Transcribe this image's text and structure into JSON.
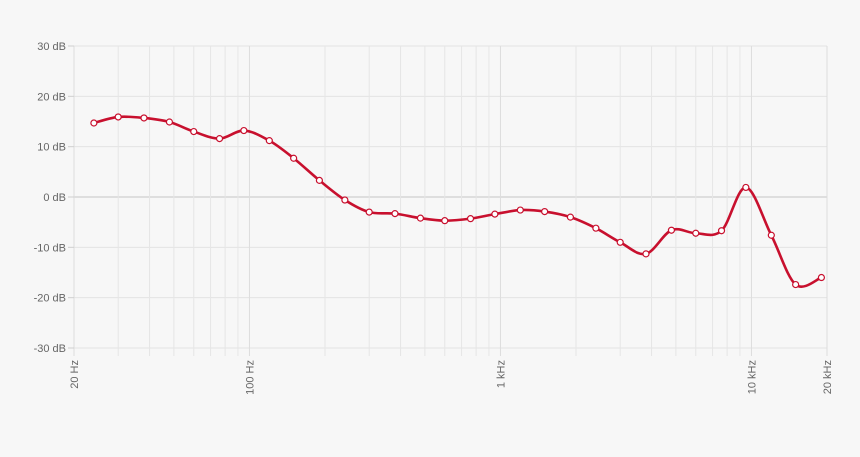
{
  "chart_data": {
    "type": "line",
    "title": "",
    "xlabel": "",
    "ylabel": "",
    "x_scale": "log",
    "xlim": [
      20,
      20000
    ],
    "ylim": [
      -30,
      30
    ],
    "grid": true,
    "legend": "none",
    "y_ticks": [
      {
        "value": 30,
        "label": "30 dB"
      },
      {
        "value": 20,
        "label": "20 dB"
      },
      {
        "value": 10,
        "label": "10 dB"
      },
      {
        "value": 0,
        "label": "0 dB"
      },
      {
        "value": -10,
        "label": "-10 dB"
      },
      {
        "value": -20,
        "label": "-20 dB"
      },
      {
        "value": -30,
        "label": "-30 dB"
      }
    ],
    "x_ticks": [
      {
        "value": 20,
        "label": "20 Hz"
      },
      {
        "value": 100,
        "label": "100 Hz"
      },
      {
        "value": 1000,
        "label": "1 kHz"
      },
      {
        "value": 10000,
        "label": "10 kHz"
      },
      {
        "value": 20000,
        "label": "20 kHz"
      }
    ],
    "x_minor_gridlines": [
      30,
      40,
      50,
      60,
      70,
      80,
      90,
      200,
      300,
      400,
      500,
      600,
      700,
      800,
      900,
      2000,
      3000,
      4000,
      5000,
      6000,
      7000,
      8000,
      9000
    ],
    "series": [
      {
        "color": "#c8102e",
        "points": [
          {
            "x": 24,
            "y": 14.7
          },
          {
            "x": 30,
            "y": 15.9
          },
          {
            "x": 38,
            "y": 15.7
          },
          {
            "x": 48,
            "y": 14.9
          },
          {
            "x": 60,
            "y": 13.0
          },
          {
            "x": 76,
            "y": 11.6
          },
          {
            "x": 95,
            "y": 13.2
          },
          {
            "x": 120,
            "y": 11.2
          },
          {
            "x": 150,
            "y": 7.7
          },
          {
            "x": 190,
            "y": 3.3
          },
          {
            "x": 240,
            "y": -0.6
          },
          {
            "x": 300,
            "y": -3.0
          },
          {
            "x": 380,
            "y": -3.3
          },
          {
            "x": 480,
            "y": -4.2
          },
          {
            "x": 600,
            "y": -4.7
          },
          {
            "x": 760,
            "y": -4.3
          },
          {
            "x": 950,
            "y": -3.4
          },
          {
            "x": 1200,
            "y": -2.6
          },
          {
            "x": 1500,
            "y": -2.9
          },
          {
            "x": 1900,
            "y": -4.0
          },
          {
            "x": 2400,
            "y": -6.2
          },
          {
            "x": 3000,
            "y": -9.0
          },
          {
            "x": 3800,
            "y": -11.3
          },
          {
            "x": 4800,
            "y": -6.6
          },
          {
            "x": 6000,
            "y": -7.2
          },
          {
            "x": 7600,
            "y": -6.7
          },
          {
            "x": 9500,
            "y": 1.9
          },
          {
            "x": 12000,
            "y": -7.6
          },
          {
            "x": 15000,
            "y": -17.4
          },
          {
            "x": 19000,
            "y": -16.0
          }
        ]
      }
    ]
  }
}
